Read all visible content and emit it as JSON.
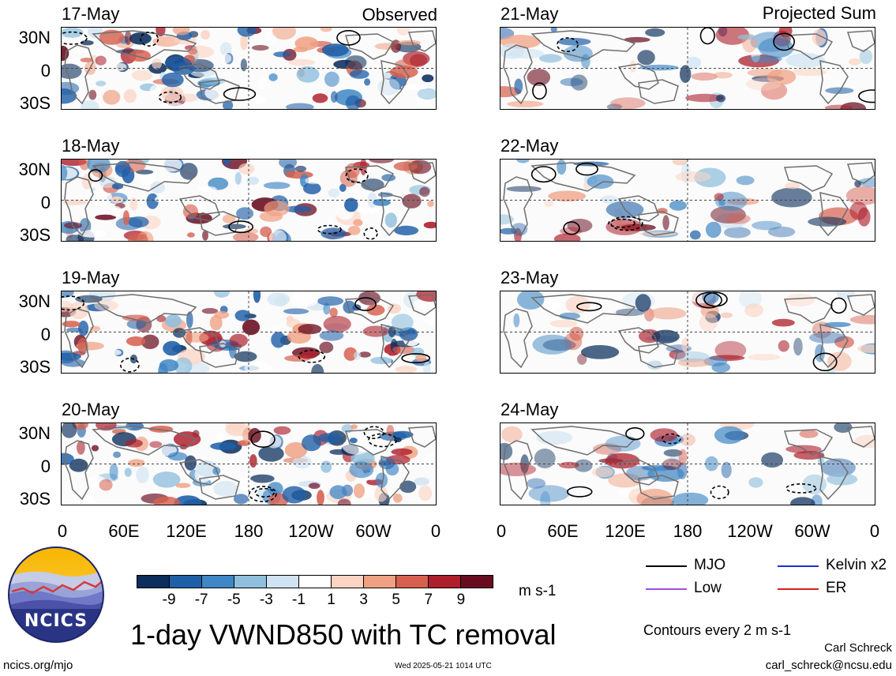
{
  "headers": {
    "left": "Observed",
    "right": "Projected Sum"
  },
  "panels": {
    "left": [
      "17-May",
      "18-May",
      "19-May",
      "20-May"
    ],
    "right": [
      "21-May",
      "22-May",
      "23-May",
      "24-May"
    ]
  },
  "lat_labels": [
    "30N",
    "0",
    "30S"
  ],
  "lon_labels": [
    "0",
    "60E",
    "120E",
    "180",
    "120W",
    "60W",
    "0"
  ],
  "colorbar": {
    "ticks": [
      "-9",
      "-7",
      "-5",
      "-3",
      "-1",
      "1",
      "3",
      "5",
      "7",
      "9"
    ],
    "colors": [
      "#0b2e5c",
      "#1f5fa8",
      "#3f86c4",
      "#8fbfdd",
      "#cfe3f1",
      "#ffffff",
      "#fbd4c3",
      "#f0a183",
      "#d6604f",
      "#ad1f2b",
      "#6a0c1f"
    ],
    "units": "m s-1"
  },
  "title": "1-day VWND850 with TC removal",
  "legend": {
    "items": [
      {
        "label": "MJO",
        "color": "#000000"
      },
      {
        "label": "Kelvin x2",
        "color": "#1f2fd6"
      },
      {
        "label": "Low",
        "color": "#a24de0"
      },
      {
        "label": "ER",
        "color": "#d62020"
      }
    ],
    "contours": "Contours every 2 m s-1"
  },
  "logo": {
    "text": "NCICS"
  },
  "footer": {
    "site": "ncics.org/mjo",
    "timestamp": "Wed 2025-05-21 1014 UTC",
    "author": "Carl Schreck",
    "email": "carl_schreck@ncsu.edu"
  }
}
